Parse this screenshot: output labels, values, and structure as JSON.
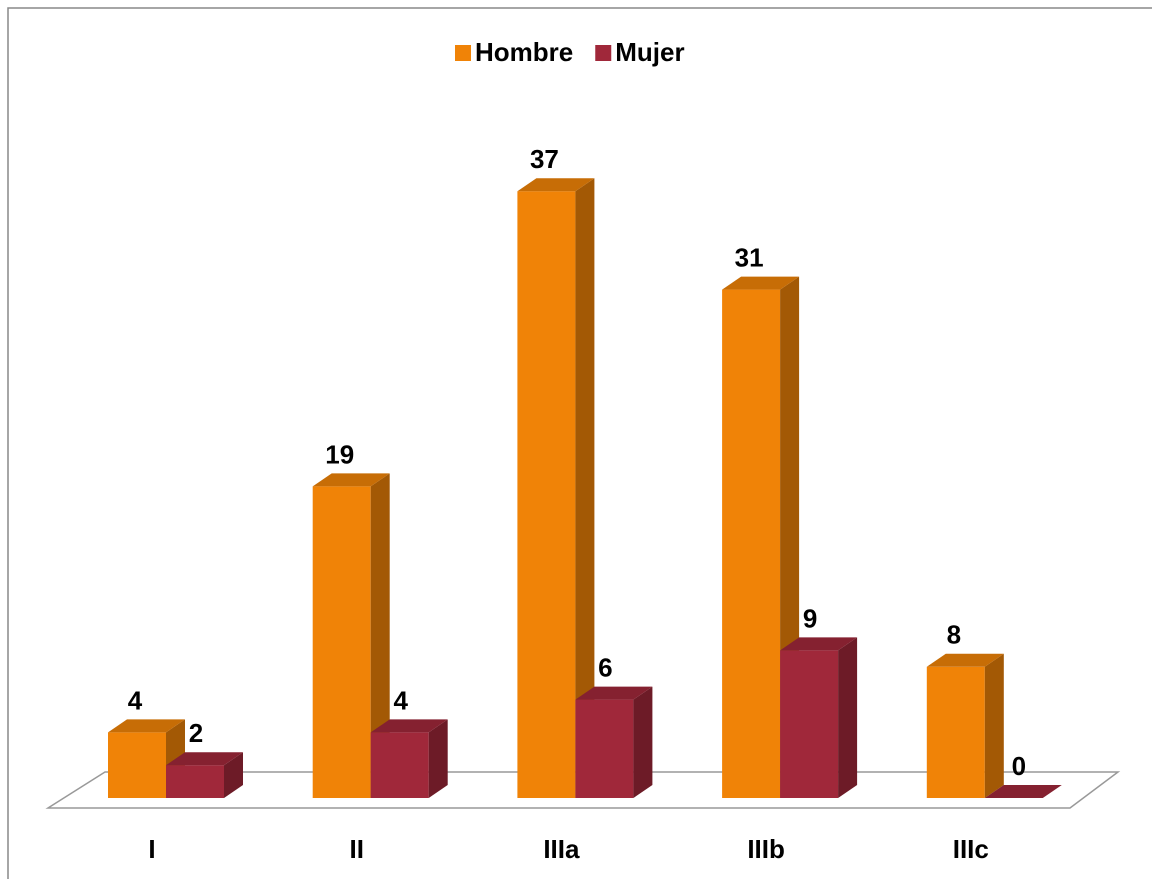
{
  "chart_data": {
    "type": "bar3d",
    "categories": [
      "I",
      "II",
      "IIIa",
      "IIIb",
      "IIIc"
    ],
    "series": [
      {
        "name": "Hombre",
        "color": "#f08307",
        "values": [
          4,
          19,
          37,
          31,
          8
        ]
      },
      {
        "name": "Mujer",
        "color": "#a0283a",
        "values": [
          2,
          4,
          6,
          9,
          0
        ]
      }
    ],
    "legend": "top"
  }
}
